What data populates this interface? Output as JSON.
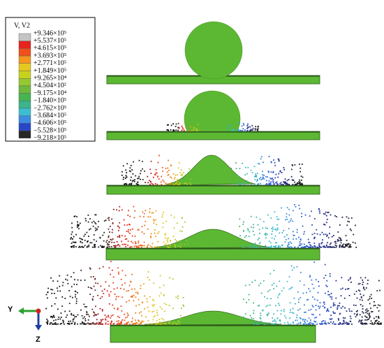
{
  "legend": {
    "title": "V, V2",
    "labels": [
      "+9.346×10⁵",
      "+5.537×10⁵",
      "+4.615×10⁵",
      "+3.693×10⁵",
      "+2.771×10⁵",
      "+1.849×10⁵",
      "+9.265×10⁴",
      "+4.504×10²",
      "−9.175×10⁴",
      "−1.840×10⁵",
      "−2.762×10⁵",
      "−3.684×10⁵",
      "−4.606×10⁵",
      "−5.528×10⁵",
      "−9.218×10⁵"
    ],
    "colors": [
      "#c4c4c4",
      "#e8231e",
      "#f0501a",
      "#f5961e",
      "#e6c81e",
      "#c8d21e",
      "#96c832",
      "#6eb93c",
      "#46b450",
      "#3cb48c",
      "#3cbed2",
      "#3c8ce1",
      "#2846c8",
      "#282828"
    ]
  },
  "triad": {
    "y_label": "Y",
    "z_label": "Z"
  }
}
